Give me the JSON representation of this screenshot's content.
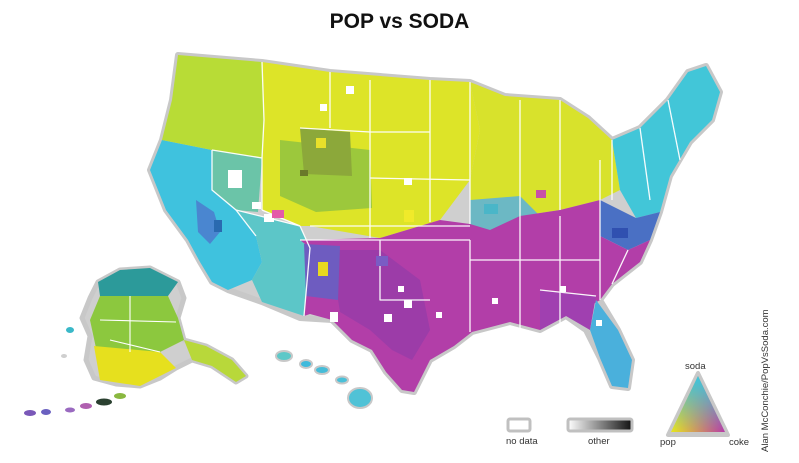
{
  "title": "POP vs SODA",
  "credit": "Alan McConchie/PopVsSoda.com",
  "legend": {
    "no_data_label": "no data",
    "other_label": "other",
    "triangle_top_label": "soda",
    "triangle_left_label": "pop",
    "triangle_right_label": "coke"
  },
  "colors": {
    "pop": "#e6e619",
    "soda": "#38c4dc",
    "coke": "#b03aa8",
    "pop_soda_mix": "#a8d84a",
    "soda_coke_mix": "#5a6cc8",
    "pop_coke_mix": "#d8a040",
    "no_data": "#ffffff",
    "state_border": "#ffffff",
    "outline": "#c8c8c8"
  }
}
